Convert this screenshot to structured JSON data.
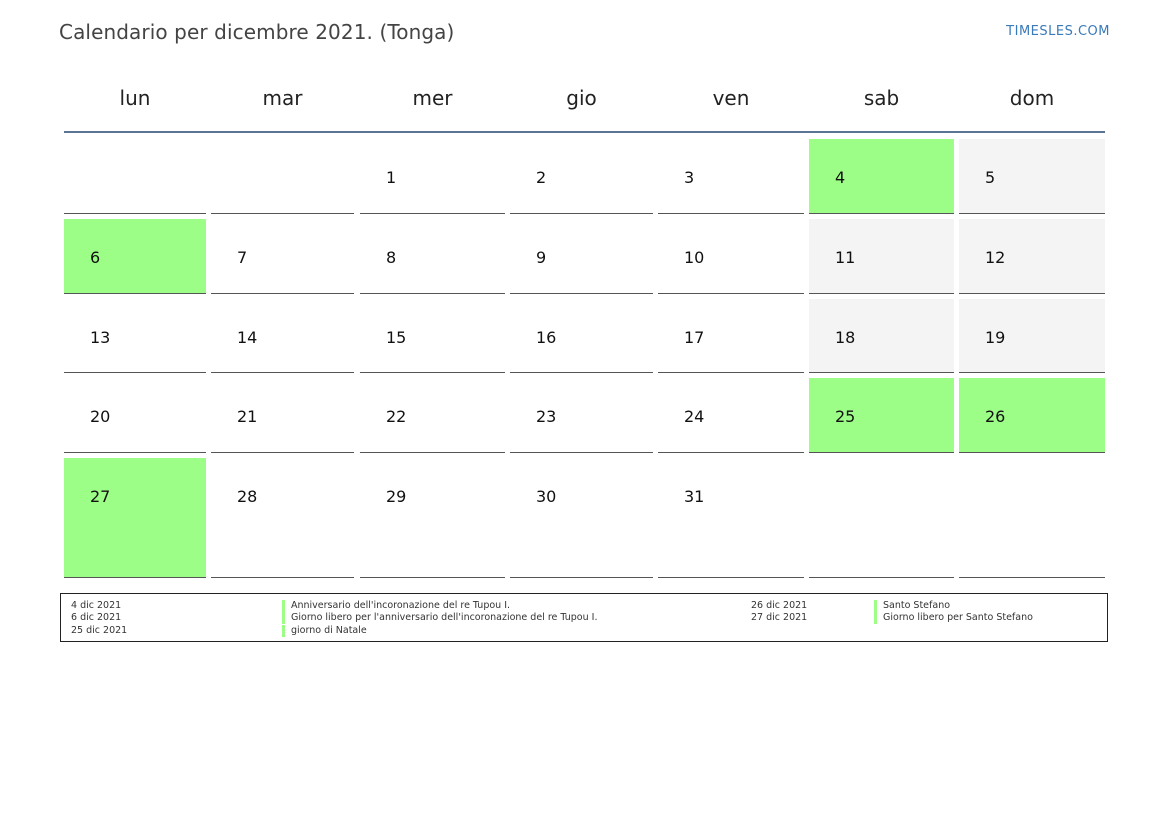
{
  "header": {
    "title": "Calendario per dicembre 2021. (Tonga)",
    "site": "TIMESLES.COM"
  },
  "colors": {
    "holiday": "#9cfd87",
    "weekend": "#f4f4f4",
    "header_line": "#5a7294",
    "site_link": "#3a7ab8"
  },
  "weekdays": [
    "lun",
    "mar",
    "mer",
    "gio",
    "ven",
    "sab",
    "dom"
  ],
  "weeks": [
    [
      null,
      null,
      1,
      2,
      3,
      4,
      5
    ],
    [
      6,
      7,
      8,
      9,
      10,
      11,
      12
    ],
    [
      13,
      14,
      15,
      16,
      17,
      18,
      19
    ],
    [
      20,
      21,
      22,
      23,
      24,
      25,
      26
    ],
    [
      27,
      28,
      29,
      30,
      31,
      null,
      null
    ]
  ],
  "holiday_days": [
    4,
    6,
    25,
    26,
    27
  ],
  "legend": {
    "left": [
      {
        "date": "4 dic 2021",
        "name": "Anniversario dell'incoronazione del re Tupou I."
      },
      {
        "date": "6 dic 2021",
        "name": "Giorno libero per l'anniversario dell'incoronazione del re Tupou I."
      },
      {
        "date": "25 dic 2021",
        "name": "giorno di Natale"
      }
    ],
    "right": [
      {
        "date": "26 dic 2021",
        "name": "Santo Stefano"
      },
      {
        "date": "27 dic 2021",
        "name": "Giorno libero per Santo Stefano"
      }
    ]
  }
}
